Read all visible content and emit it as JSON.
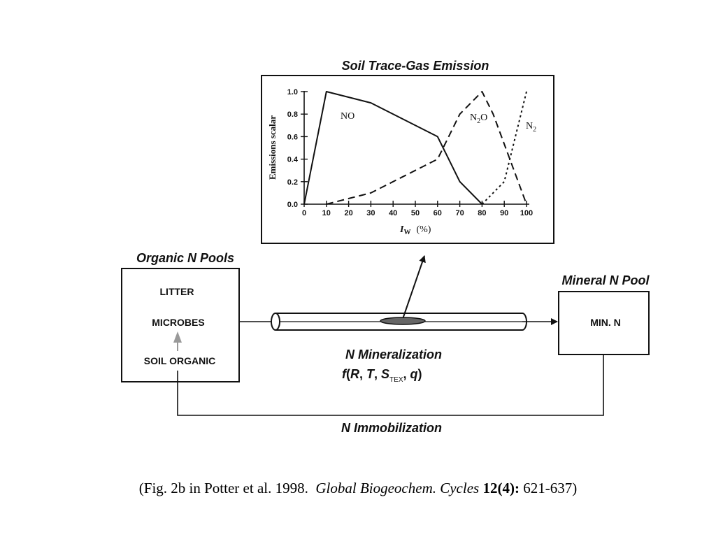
{
  "chart_panel": {
    "title": "Soil Trace-Gas Emission",
    "ylabel": "Emissions scalar",
    "xlabel_symbol": "I",
    "xlabel_subscript": "W",
    "xlabel_unit": "(%)",
    "series_labels": {
      "no": "NO",
      "n2o_main": "N",
      "n2o_sub": "2",
      "n2o_tail": "O",
      "n2_main": "N",
      "n2_sub": "2"
    }
  },
  "chart_data": {
    "type": "line",
    "title": "Soil Trace-Gas Emission",
    "xlabel": "I W (%)",
    "ylabel": "Emissions scalar",
    "xlim": [
      0,
      100
    ],
    "ylim": [
      0,
      1.0
    ],
    "xticks": [
      "0",
      "10",
      "20",
      "30",
      "40",
      "50",
      "60",
      "70",
      "80",
      "90",
      "100"
    ],
    "yticks": [
      "0.0",
      "0.2",
      "0.4",
      "0.6",
      "0.8",
      "1.0"
    ],
    "series": [
      {
        "name": "NO",
        "style": "solid",
        "x": [
          0,
          10,
          30,
          60,
          70,
          80
        ],
        "y": [
          0,
          1.0,
          0.9,
          0.6,
          0.2,
          0
        ]
      },
      {
        "name": "N2O",
        "style": "dashed",
        "x": [
          10,
          30,
          60,
          70,
          80,
          85,
          100
        ],
        "y": [
          0,
          0.1,
          0.4,
          0.8,
          1.0,
          0.8,
          0
        ]
      },
      {
        "name": "N2",
        "style": "dotted",
        "x": [
          80,
          90,
          100
        ],
        "y": [
          0,
          0.2,
          1.0
        ]
      }
    ]
  },
  "organic_pool": {
    "title": "Organic N Pools",
    "items": [
      "LITTER",
      "MICROBES",
      "SOIL ORGANIC"
    ]
  },
  "mineral_pool": {
    "title": "Mineral N Pool",
    "label": "MIN. N"
  },
  "mineralization": {
    "title": "N Mineralization",
    "formula_f": "f",
    "formula_open": "(",
    "formula_r": "R",
    "formula_comma1": ", ",
    "formula_t": "T",
    "formula_comma2": ", ",
    "formula_s": "S",
    "formula_tex": "TEX",
    "formula_comma3": ", ",
    "formula_q": "q",
    "formula_close": ")"
  },
  "immobilization": {
    "title": "N Immobilization"
  },
  "caption": {
    "open": "(Fig. 2b in Potter et al. 1998.",
    "journal": "Global Biogeochem. Cycles",
    "volume": "12(4):",
    "pages": "621-637)"
  }
}
